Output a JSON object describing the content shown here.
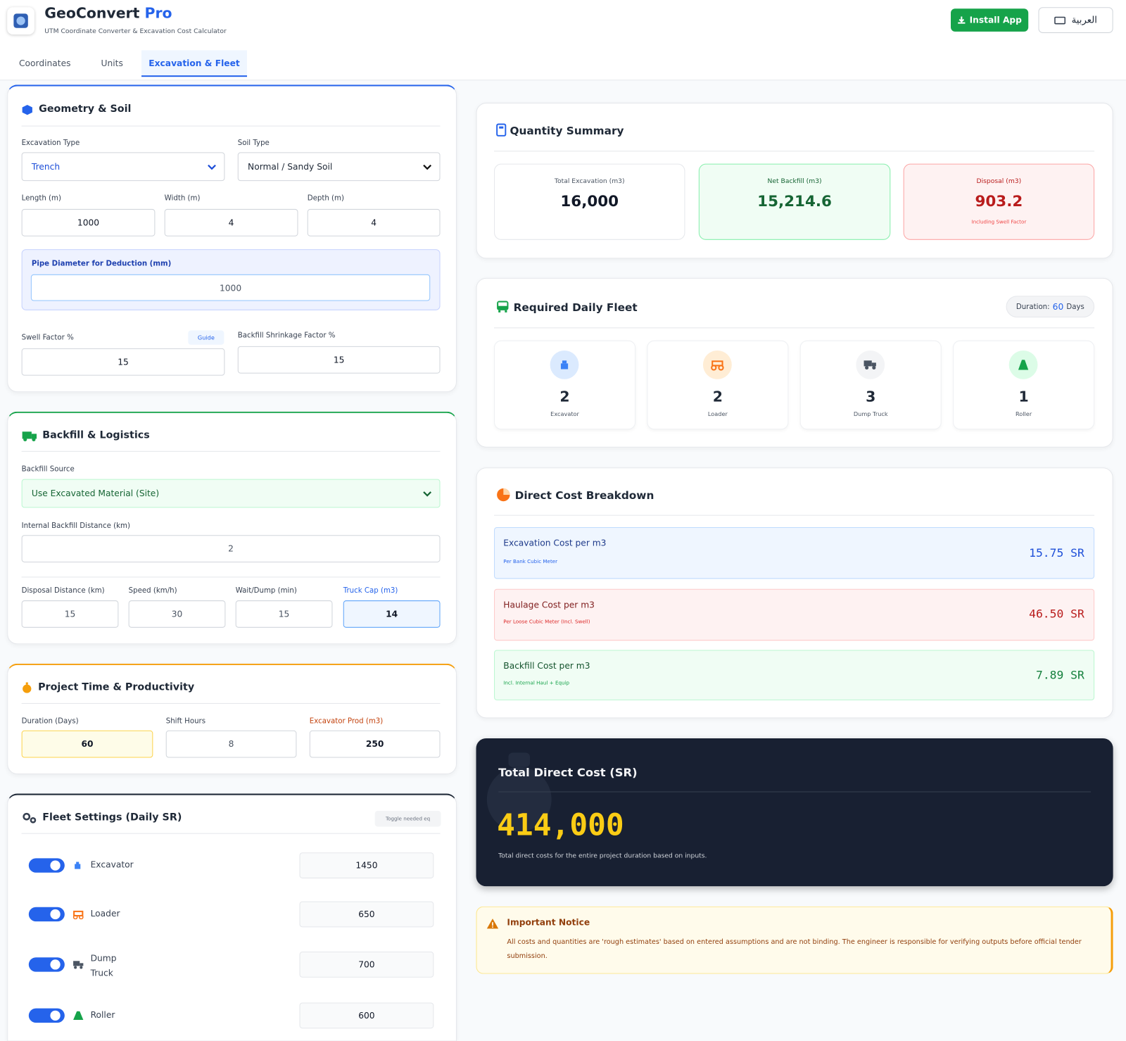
{
  "header": {
    "app_name": "GeoConvert",
    "app_name_suffix": "Pro",
    "subtitle": "UTM Coordinate Converter & Excavation Cost Calculator",
    "install_button": "Install App",
    "language_button": "العربية"
  },
  "tabs": [
    "Coordinates",
    "Units",
    "Excavation & Fleet"
  ],
  "geometry_soil": {
    "title": "Geometry & Soil",
    "excavation_type": {
      "label": "Excavation Type",
      "value": "Trench"
    },
    "soil_type": {
      "label": "Soil Type",
      "value": "Normal / Sandy Soil"
    },
    "length": {
      "label": "Length (m)",
      "value": 1000
    },
    "width": {
      "label": "Width (m)",
      "value": 4
    },
    "depth": {
      "label": "Depth (m)",
      "value": 4
    },
    "pipe_diameter": {
      "label": "Pipe Diameter for Deduction (mm)",
      "value": 1000
    },
    "swell_factor": {
      "label": "Swell Factor %",
      "guide": "Guide",
      "value": 15
    },
    "shrinkage_factor": {
      "label": "Backfill Shrinkage Factor %",
      "value": 15
    }
  },
  "backfill_logistics": {
    "title": "Backfill & Logistics",
    "backfill_source": {
      "label": "Backfill Source",
      "value": "Use Excavated Material (Site)"
    },
    "internal_distance": {
      "label": "Internal Backfill Distance (km)",
      "value": 2
    },
    "disposal_distance": {
      "label": "Disposal Distance (km)",
      "value": 15
    },
    "speed": {
      "label": "Speed (km/h)",
      "value": 30
    },
    "wait_dump": {
      "label": "Wait/Dump (min)",
      "value": 15
    },
    "truck_capacity": {
      "label": "Truck Cap (m3)",
      "value": 14
    }
  },
  "project_time": {
    "title": "Project Time & Productivity",
    "duration": {
      "label": "Duration (Days)",
      "value": 60
    },
    "shift_hours": {
      "label": "Shift Hours",
      "value": 8
    },
    "excavator_prod": {
      "label": "Excavator Prod (m3)",
      "value": 250
    }
  },
  "fleet_settings": {
    "title": "Fleet Settings (Daily SR)",
    "hint": "Toggle needed eq",
    "rows": [
      {
        "name": "Excavator",
        "rate": 1450
      },
      {
        "name": "Loader",
        "rate": 650
      },
      {
        "name": "Dump Truck",
        "rate": 700
      },
      {
        "name": "Roller",
        "rate": 600
      }
    ]
  },
  "quantity_summary": {
    "title": "Quantity Summary",
    "total_excavation": {
      "label": "Total Excavation (m3)",
      "value": "16,000"
    },
    "net_backfill": {
      "label": "Net Backfill (m3)",
      "value": "15,214.6"
    },
    "disposal": {
      "label": "Disposal (m3)",
      "value": "903.2",
      "note": "Including Swell Factor"
    }
  },
  "daily_fleet": {
    "title": "Required Daily Fleet",
    "duration_label": "Duration:",
    "duration_value": 60,
    "duration_unit": "Days",
    "items": [
      {
        "count": 2,
        "name": "Excavator"
      },
      {
        "count": 2,
        "name": "Loader"
      },
      {
        "count": 3,
        "name": "Dump Truck"
      },
      {
        "count": 1,
        "name": "Roller"
      }
    ]
  },
  "cost_breakdown": {
    "title": "Direct Cost Breakdown",
    "items": [
      {
        "title": "Excavation Cost per m3",
        "note": "Per Bank Cubic Meter",
        "value": "15.75",
        "unit": "SR"
      },
      {
        "title": "Haulage Cost per m3",
        "note": "Per Loose Cubic Meter (Incl. Swell)",
        "value": "46.50",
        "unit": "SR"
      },
      {
        "title": "Backfill Cost per m3",
        "note": "Incl. Internal Haul + Equip",
        "value": "7.89",
        "unit": "SR"
      }
    ]
  },
  "total_cost": {
    "title": "Total Direct Cost (SR)",
    "value": "414,000",
    "description": "Total direct costs for the entire project duration based on inputs."
  },
  "notice": {
    "title": "Important Notice",
    "text": "All costs and quantities are 'rough estimates' based on entered assumptions and are not binding. The engineer is responsible for verifying outputs before official tender submission."
  }
}
